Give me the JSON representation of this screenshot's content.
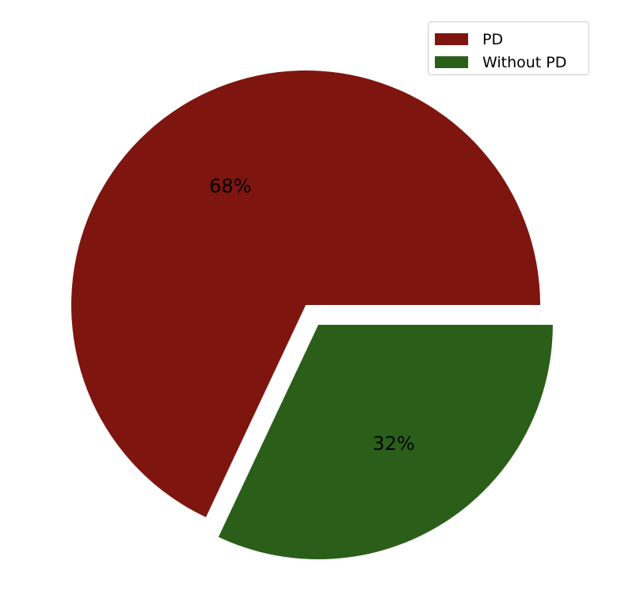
{
  "chart_data": {
    "type": "pie",
    "title": "",
    "slices": [
      {
        "label": "PD",
        "value": 68,
        "pct_label": "68%",
        "color": "#7e150f",
        "exploded": false
      },
      {
        "label": "Without PD",
        "value": 32,
        "pct_label": "32%",
        "color": "#2b5f19",
        "exploded": true
      }
    ],
    "start_angle_deg": 0,
    "direction": "counterclockwise",
    "legend_position": "top-right"
  }
}
